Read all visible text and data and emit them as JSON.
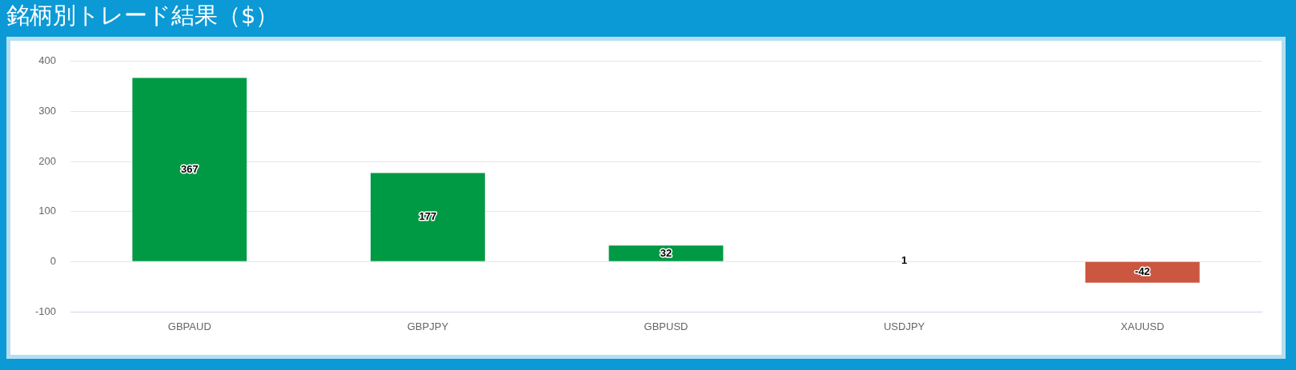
{
  "chart_data": {
    "type": "bar",
    "title": "銘柄別トレード結果（$）",
    "categories": [
      "GBPAUD",
      "GBPJPY",
      "GBPUSD",
      "USDJPY",
      "XAUUSD"
    ],
    "values": [
      367,
      177,
      32,
      1,
      -42
    ],
    "colors": [
      "#009944",
      "#009944",
      "#009944",
      "#009944",
      "#cc5740"
    ],
    "ylim": [
      -100,
      400
    ],
    "yticks": [
      -100,
      0,
      100,
      200,
      300,
      400
    ],
    "grid": "y",
    "data_labels": true
  }
}
